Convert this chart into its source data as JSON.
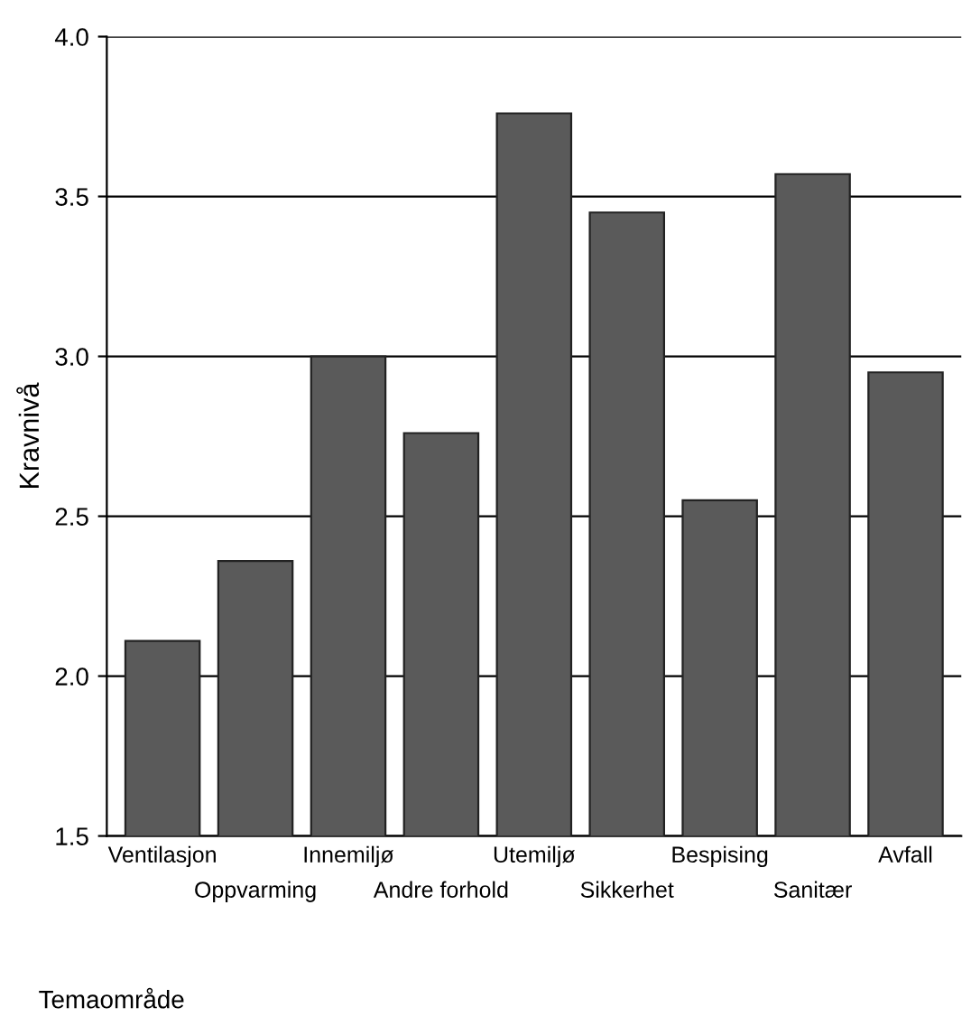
{
  "chart_data": {
    "type": "bar",
    "xlabel": "Temaområde",
    "ylabel": "Kravnivå",
    "categories": [
      "Ventilasjon",
      "Oppvarming",
      "Innemiljø",
      "Andre forhold",
      "Utemiljø",
      "Sikkerhet",
      "Bespising",
      "Sanitær",
      "Avfall"
    ],
    "values": [
      2.11,
      2.36,
      3.0,
      2.76,
      3.76,
      3.45,
      2.55,
      3.57,
      2.95
    ],
    "color": "#5a5a5a",
    "ylim": [
      1.5,
      4.0
    ],
    "yticks": [
      {
        "value": 1.5,
        "label": "1.5"
      },
      {
        "value": 2.0,
        "label": "2.0"
      },
      {
        "value": 2.5,
        "label": "2.5"
      },
      {
        "value": 3.0,
        "label": "3.0"
      },
      {
        "value": 3.5,
        "label": "3.5"
      },
      {
        "value": 4.0,
        "label": "4.0"
      }
    ],
    "grid": "y"
  }
}
